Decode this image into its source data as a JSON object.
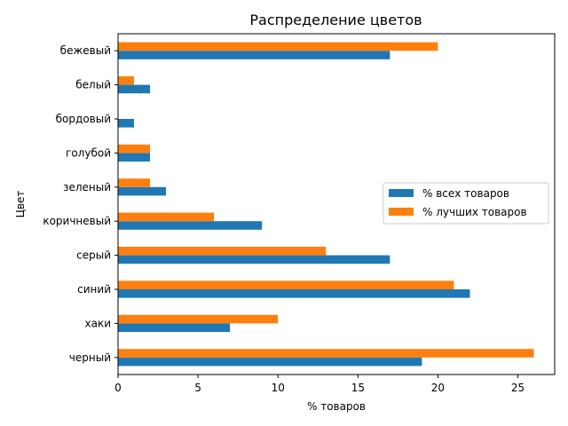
{
  "chart_data": {
    "type": "bar",
    "orientation": "horizontal",
    "title": "Распределение цветов",
    "xlabel": "% товаров",
    "ylabel": "Цвет",
    "categories": [
      "бежевый",
      "белый",
      "бордовый",
      "голубой",
      "зеленый",
      "коричневый",
      "серый",
      "синий",
      "хаки",
      "черный"
    ],
    "series": [
      {
        "name": "% всех товаров",
        "color": "#1f77b4",
        "values": [
          17,
          2,
          1,
          2,
          3,
          9,
          17,
          22,
          7,
          19
        ]
      },
      {
        "name": "% лучших товаров",
        "color": "#ff7f0e",
        "values": [
          20,
          1,
          0,
          2,
          2,
          6,
          13,
          21,
          10,
          26
        ]
      }
    ],
    "xlim": [
      0,
      27.3
    ],
    "xticks": [
      0,
      5,
      10,
      15,
      20,
      25
    ],
    "grid": false,
    "legend_position": "right"
  }
}
